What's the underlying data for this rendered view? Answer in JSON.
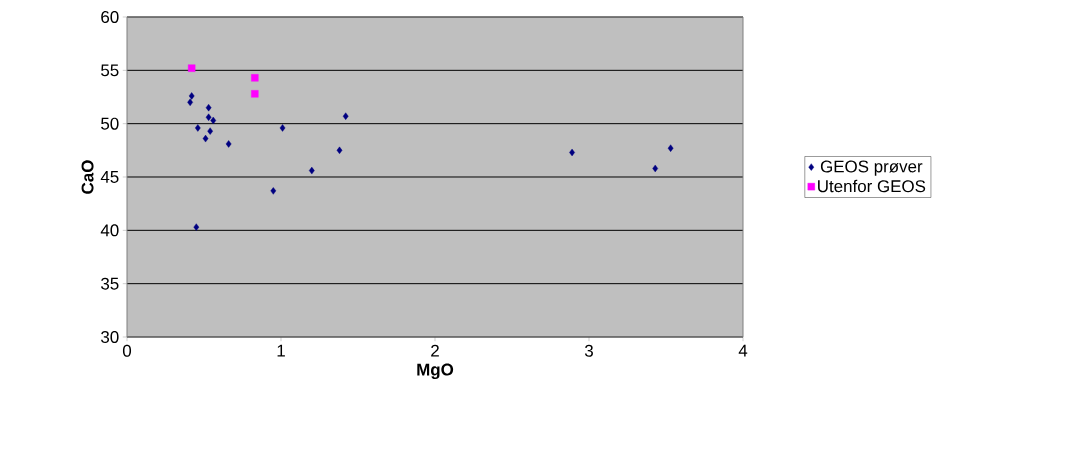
{
  "chart_data": {
    "type": "scatter",
    "xlabel": "MgO",
    "ylabel": "CaO",
    "xlim": [
      0,
      4
    ],
    "ylim": [
      30,
      60
    ],
    "xticks": [
      0,
      1,
      2,
      3,
      4
    ],
    "yticks": [
      30,
      35,
      40,
      45,
      50,
      55,
      60
    ],
    "grid": "y",
    "legend": "right",
    "series": [
      {
        "name": "GEOS prøver",
        "color": "#000080",
        "marker": "diamond",
        "x": [
          0.42,
          0.41,
          0.53,
          0.53,
          0.56,
          0.46,
          0.54,
          0.51,
          0.66,
          1.01,
          1.42,
          1.38,
          1.2,
          0.95,
          0.45,
          2.89,
          3.43,
          3.53
        ],
        "values": [
          52.6,
          52.0,
          51.5,
          50.6,
          50.3,
          49.6,
          49.3,
          48.6,
          48.1,
          49.6,
          50.7,
          47.5,
          45.6,
          43.7,
          40.3,
          47.3,
          45.8,
          47.7
        ]
      },
      {
        "name": "Utenfor GEOS",
        "color": "#ff00ff",
        "marker": "square",
        "x": [
          0.42,
          0.83,
          0.83
        ],
        "values": [
          55.2,
          54.3,
          52.8
        ]
      }
    ]
  }
}
